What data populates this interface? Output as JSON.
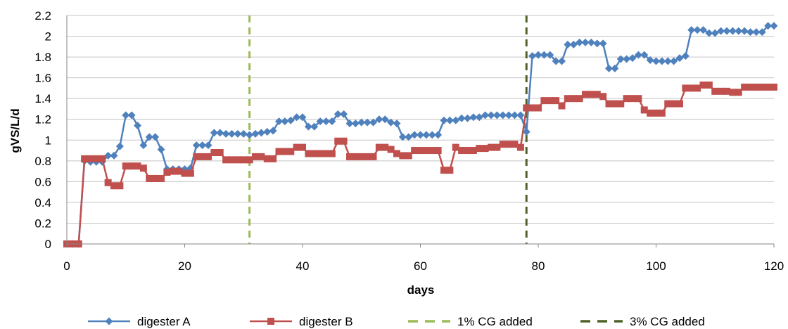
{
  "chart_data": {
    "type": "line",
    "xlabel": "days",
    "ylabel": "gVS/L/d",
    "xlim": [
      0,
      120
    ],
    "ylim": [
      0,
      2.2
    ],
    "x_ticks": [
      "0",
      "20",
      "40",
      "60",
      "80",
      "100",
      "120"
    ],
    "y_ticks": [
      "0",
      "0.2",
      "0.4",
      "0.6",
      "0.8",
      "1",
      "1.2",
      "1.4",
      "1.6",
      "1.8",
      "2",
      "2.2"
    ],
    "grid": "horizontal",
    "legend_position": "bottom",
    "series": [
      {
        "name": "digester A",
        "color": "#4f81bd",
        "marker": "diamond",
        "x": [
          0,
          1,
          2,
          3,
          4,
          5,
          6,
          7,
          8,
          9,
          10,
          11,
          12,
          13,
          14,
          15,
          16,
          17,
          18,
          19,
          20,
          21,
          22,
          23,
          24,
          25,
          26,
          27,
          28,
          29,
          30,
          31,
          32,
          33,
          34,
          35,
          36,
          37,
          38,
          39,
          40,
          41,
          42,
          43,
          44,
          45,
          46,
          47,
          48,
          49,
          50,
          51,
          52,
          53,
          54,
          55,
          56,
          57,
          58,
          59,
          60,
          61,
          62,
          63,
          64,
          65,
          66,
          67,
          68,
          69,
          70,
          71,
          72,
          73,
          74,
          75,
          76,
          77,
          78,
          79,
          80,
          81,
          82,
          83,
          84,
          85,
          86,
          87,
          88,
          89,
          90,
          91,
          92,
          93,
          94,
          95,
          96,
          97,
          98,
          99,
          100,
          101,
          102,
          103,
          104,
          105,
          106,
          107,
          108,
          109,
          110,
          111,
          112,
          113,
          114,
          115,
          116,
          117,
          118,
          119,
          120
        ],
        "y": [
          0,
          0,
          0,
          0.8,
          0.79,
          0.79,
          0.79,
          0.85,
          0.85,
          0.94,
          1.24,
          1.24,
          1.14,
          0.95,
          1.03,
          1.03,
          0.91,
          0.72,
          0.72,
          0.72,
          0.72,
          0.73,
          0.95,
          0.95,
          0.95,
          1.07,
          1.07,
          1.06,
          1.06,
          1.06,
          1.06,
          1.05,
          1.06,
          1.07,
          1.08,
          1.09,
          1.18,
          1.18,
          1.19,
          1.22,
          1.22,
          1.13,
          1.13,
          1.18,
          1.18,
          1.18,
          1.25,
          1.25,
          1.16,
          1.16,
          1.17,
          1.17,
          1.17,
          1.2,
          1.2,
          1.17,
          1.16,
          1.03,
          1.03,
          1.05,
          1.05,
          1.05,
          1.05,
          1.05,
          1.19,
          1.19,
          1.19,
          1.21,
          1.21,
          1.22,
          1.22,
          1.24,
          1.24,
          1.24,
          1.24,
          1.24,
          1.24,
          1.24,
          1.08,
          1.81,
          1.82,
          1.82,
          1.82,
          1.76,
          1.76,
          1.92,
          1.92,
          1.94,
          1.94,
          1.94,
          1.93,
          1.93,
          1.69,
          1.69,
          1.78,
          1.78,
          1.79,
          1.82,
          1.82,
          1.77,
          1.76,
          1.76,
          1.76,
          1.76,
          1.79,
          1.81,
          2.06,
          2.06,
          2.06,
          2.03,
          2.03,
          2.05,
          2.05,
          2.05,
          2.05,
          2.05,
          2.04,
          2.04,
          2.04,
          2.1,
          2.1
        ]
      },
      {
        "name": "digester B",
        "color": "#c0504d",
        "marker": "square",
        "x": [
          0,
          1,
          2,
          3,
          4,
          5,
          6,
          7,
          8,
          9,
          10,
          11,
          12,
          13,
          14,
          15,
          16,
          17,
          18,
          19,
          20,
          21,
          22,
          23,
          24,
          25,
          26,
          27,
          28,
          29,
          30,
          31,
          32,
          33,
          34,
          35,
          36,
          37,
          38,
          39,
          40,
          41,
          42,
          43,
          44,
          45,
          46,
          47,
          48,
          49,
          50,
          51,
          52,
          53,
          54,
          55,
          56,
          57,
          58,
          59,
          60,
          61,
          62,
          63,
          64,
          65,
          66,
          67,
          68,
          69,
          70,
          71,
          72,
          73,
          74,
          75,
          76,
          77,
          78,
          79,
          80,
          81,
          82,
          83,
          84,
          85,
          86,
          87,
          88,
          89,
          90,
          91,
          92,
          93,
          94,
          95,
          96,
          97,
          98,
          99,
          100,
          101,
          102,
          103,
          104,
          105,
          106,
          107,
          108,
          109,
          110,
          111,
          112,
          113,
          114,
          115,
          116,
          117,
          118,
          119,
          120
        ],
        "y": [
          0,
          0,
          0,
          0.82,
          0.82,
          0.82,
          0.82,
          0.59,
          0.56,
          0.56,
          0.75,
          0.75,
          0.75,
          0.73,
          0.63,
          0.63,
          0.63,
          0.69,
          0.7,
          0.7,
          0.68,
          0.68,
          0.84,
          0.84,
          0.84,
          0.88,
          0.88,
          0.81,
          0.81,
          0.81,
          0.81,
          0.81,
          0.84,
          0.84,
          0.82,
          0.82,
          0.89,
          0.89,
          0.89,
          0.93,
          0.93,
          0.87,
          0.87,
          0.87,
          0.87,
          0.87,
          0.99,
          0.99,
          0.84,
          0.84,
          0.84,
          0.84,
          0.84,
          0.93,
          0.93,
          0.91,
          0.87,
          0.85,
          0.85,
          0.9,
          0.9,
          0.9,
          0.9,
          0.9,
          0.71,
          0.71,
          0.93,
          0.9,
          0.9,
          0.9,
          0.92,
          0.92,
          0.93,
          0.93,
          0.96,
          0.96,
          0.96,
          0.93,
          1.31,
          1.31,
          1.31,
          1.38,
          1.38,
          1.38,
          1.33,
          1.4,
          1.4,
          1.4,
          1.44,
          1.44,
          1.44,
          1.42,
          1.35,
          1.35,
          1.35,
          1.4,
          1.4,
          1.4,
          1.29,
          1.26,
          1.26,
          1.26,
          1.35,
          1.35,
          1.35,
          1.5,
          1.5,
          1.5,
          1.53,
          1.53,
          1.47,
          1.47,
          1.47,
          1.46,
          1.46,
          1.51,
          1.51,
          1.51,
          1.51,
          1.51,
          1.51
        ]
      }
    ],
    "vlines": [
      {
        "name": "1% CG added",
        "x": 31,
        "color": "#9bbb59",
        "style": "dashed"
      },
      {
        "name": "3% CG added",
        "x": 78,
        "color": "#4f6228",
        "style": "dashed"
      }
    ]
  }
}
